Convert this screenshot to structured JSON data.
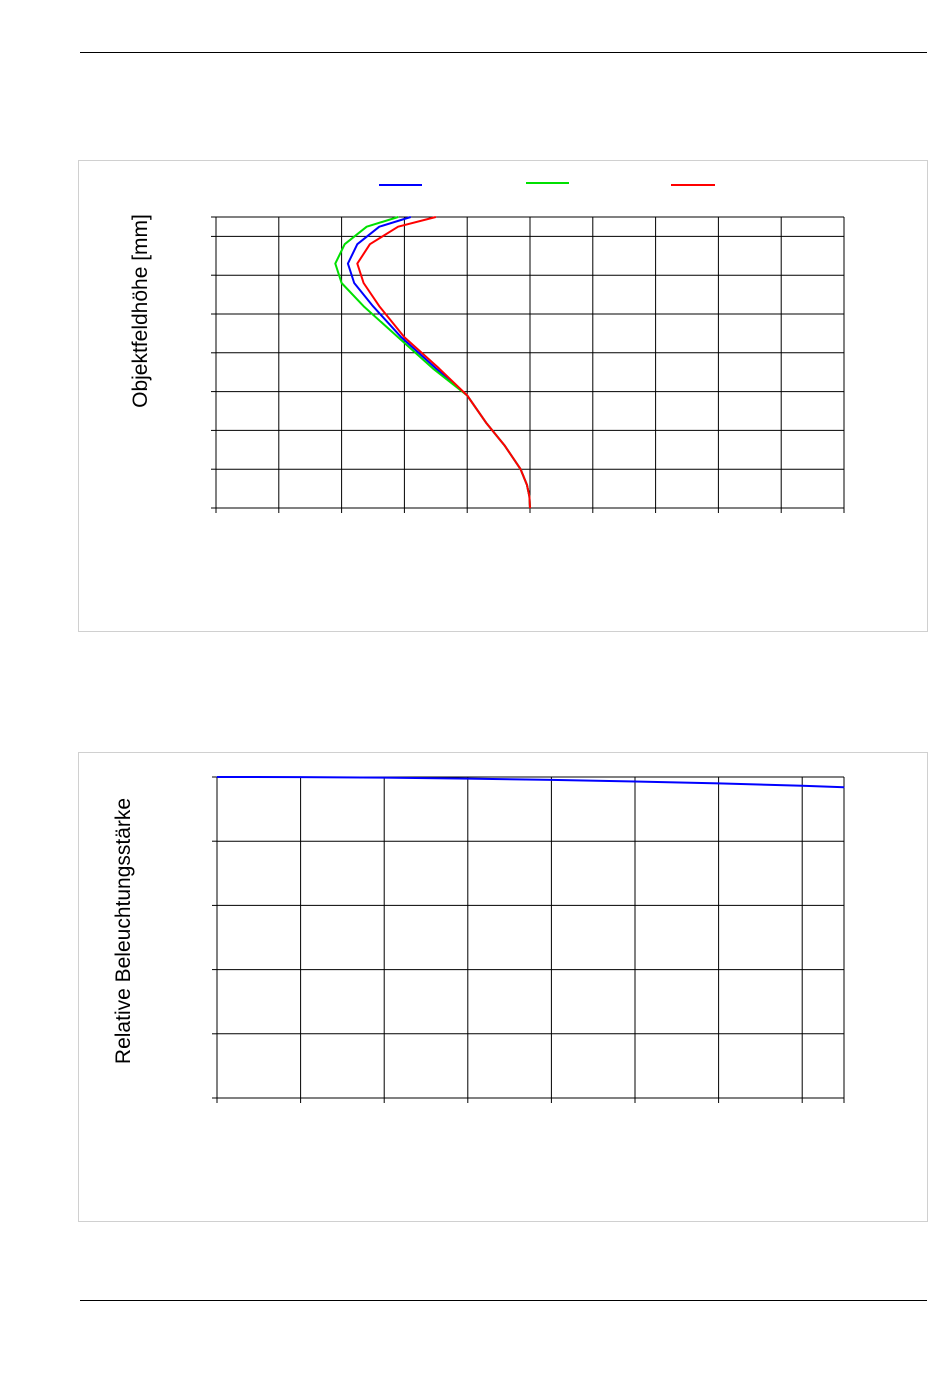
{
  "charts": {
    "distortion": {
      "ylabel": "Objektfeldhöhe [mm]"
    },
    "illumination": {
      "ylabel": "Relative Beleuchtungsstärke"
    }
  },
  "colors": {
    "series1": "#0000ff",
    "series2": "#00e000",
    "series3": "#ff0000",
    "grid": "#000000",
    "frame": "#d0d0d0"
  },
  "chart_data": [
    {
      "type": "line",
      "title": "",
      "xlabel": "",
      "ylabel": "Objektfeldhöhe [mm]",
      "xlim": [
        0,
        10
      ],
      "ylim": [
        0,
        7.5
      ],
      "x_gridlines": 10,
      "y_gridlines": [
        0,
        1,
        2,
        3,
        4,
        5,
        6,
        7,
        7.5
      ],
      "grid": true,
      "legend": "top-center",
      "series": [
        {
          "color": "#0000ff",
          "points": [
            [
              5.0,
              0
            ],
            [
              4.99,
              0.3
            ],
            [
              4.95,
              0.6
            ],
            [
              4.85,
              1.0
            ],
            [
              4.6,
              1.6
            ],
            [
              4.3,
              2.2
            ],
            [
              4.0,
              2.9
            ],
            [
              3.5,
              3.6
            ],
            [
              2.95,
              4.4
            ],
            [
              2.5,
              5.2
            ],
            [
              2.2,
              5.8
            ],
            [
              2.1,
              6.3
            ],
            [
              2.25,
              6.8
            ],
            [
              2.6,
              7.25
            ],
            [
              3.1,
              7.5
            ]
          ]
        },
        {
          "color": "#00e000",
          "points": [
            [
              5.0,
              0
            ],
            [
              4.99,
              0.3
            ],
            [
              4.95,
              0.6
            ],
            [
              4.85,
              1.0
            ],
            [
              4.6,
              1.6
            ],
            [
              4.3,
              2.2
            ],
            [
              4.0,
              2.9
            ],
            [
              3.45,
              3.6
            ],
            [
              2.9,
              4.4
            ],
            [
              2.35,
              5.2
            ],
            [
              2.0,
              5.8
            ],
            [
              1.9,
              6.3
            ],
            [
              2.05,
              6.8
            ],
            [
              2.4,
              7.25
            ],
            [
              2.9,
              7.5
            ]
          ]
        },
        {
          "color": "#ff0000",
          "points": [
            [
              5.0,
              0
            ],
            [
              4.99,
              0.3
            ],
            [
              4.95,
              0.6
            ],
            [
              4.85,
              1.0
            ],
            [
              4.6,
              1.6
            ],
            [
              4.3,
              2.2
            ],
            [
              4.0,
              2.9
            ],
            [
              3.55,
              3.6
            ],
            [
              3.0,
              4.4
            ],
            [
              2.6,
              5.2
            ],
            [
              2.35,
              5.8
            ],
            [
              2.25,
              6.3
            ],
            [
              2.45,
              6.8
            ],
            [
              2.9,
              7.25
            ],
            [
              3.5,
              7.5
            ]
          ]
        }
      ]
    },
    {
      "type": "line",
      "title": "",
      "xlabel": "",
      "ylabel": "Relative Beleuchtungsstärke",
      "xlim": [
        0,
        7.5
      ],
      "ylim": [
        0,
        5
      ],
      "x_gridlines": [
        0,
        1,
        2,
        3,
        4,
        5,
        6,
        7,
        7.5
      ],
      "y_gridlines": 5,
      "grid": true,
      "legend": "none",
      "series": [
        {
          "color": "#0000ff",
          "points": [
            [
              0,
              5.0
            ],
            [
              1,
              4.998
            ],
            [
              2,
              4.99
            ],
            [
              3,
              4.975
            ],
            [
              4,
              4.955
            ],
            [
              5,
              4.93
            ],
            [
              6,
              4.9
            ],
            [
              7,
              4.865
            ],
            [
              7.5,
              4.84
            ]
          ]
        }
      ]
    }
  ]
}
